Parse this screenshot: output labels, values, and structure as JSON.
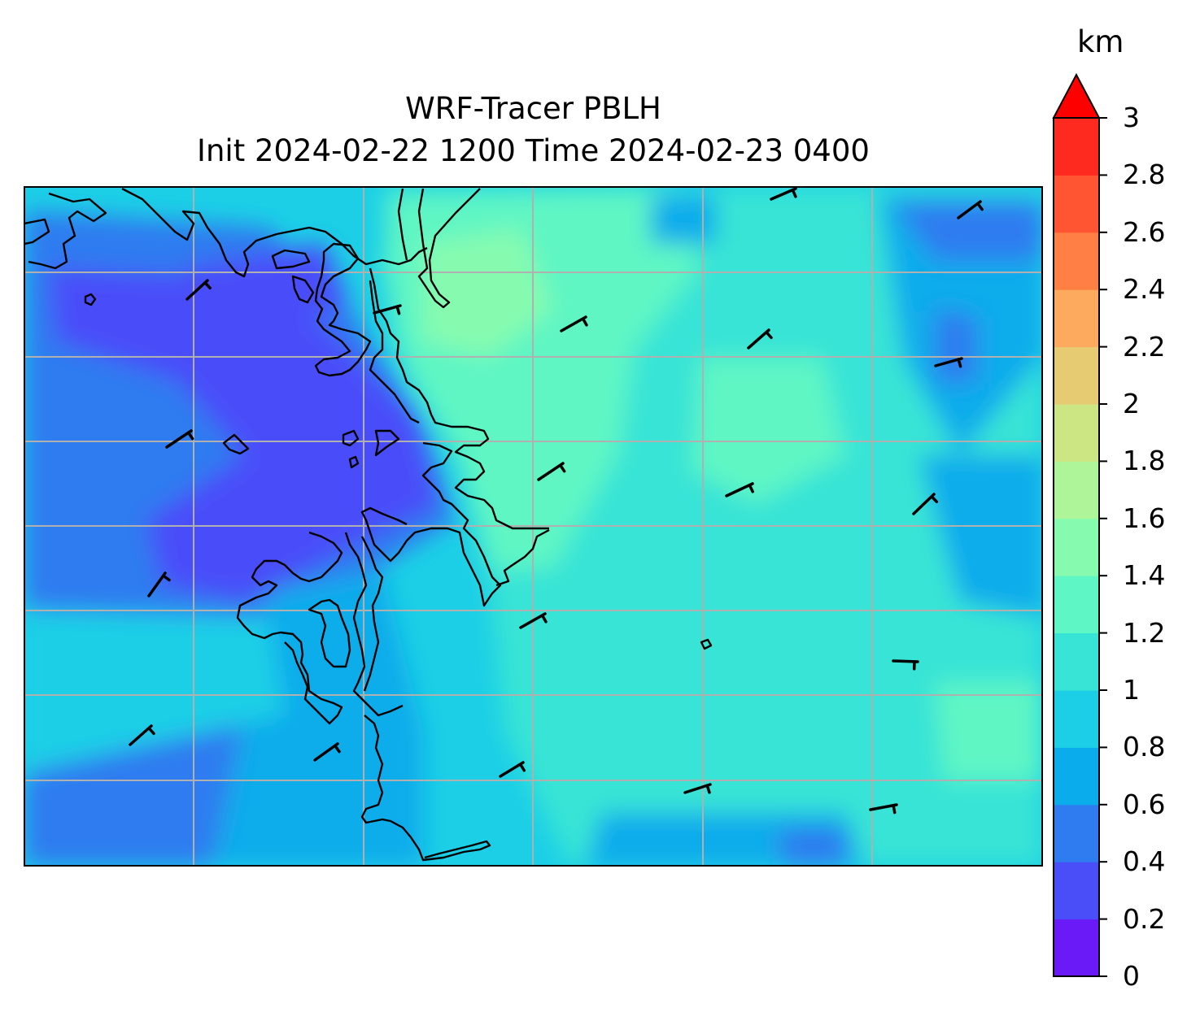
{
  "title": {
    "line1": "WRF-Tracer PBLH",
    "line2": "Init 2024-02-22 1200 Time 2024-02-23 0400"
  },
  "colorbar": {
    "unit": "km",
    "tick_labels": [
      "0",
      "0.2",
      "0.4",
      "0.6",
      "0.8",
      "1",
      "1.2",
      "1.4",
      "1.6",
      "1.8",
      "2",
      "2.2",
      "2.4",
      "2.6",
      "2.8",
      "3"
    ],
    "levels": [
      0,
      0.2,
      0.4,
      0.6,
      0.8,
      1.0,
      1.2,
      1.4,
      1.6,
      1.8,
      2.0,
      2.2,
      2.4,
      2.6,
      2.8,
      3.0
    ],
    "colors": [
      "#6a1af7",
      "#4a4ef9",
      "#2e7cf0",
      "#0aaceb",
      "#1ccfe6",
      "#37e4d6",
      "#5ef6c4",
      "#86fbaf",
      "#aef59a",
      "#cde684",
      "#e6cb72",
      "#fda95e",
      "#ff7f45",
      "#ff5533",
      "#ff2a1f"
    ],
    "extend_color": "#ff0000",
    "extend": "max",
    "range": [
      0,
      3
    ]
  },
  "map": {
    "variable": "PBLH",
    "background_color": "#2ee0dc",
    "grid": true,
    "gridline_color": "#b0b0b0",
    "coastline_color": "#000000"
  }
}
